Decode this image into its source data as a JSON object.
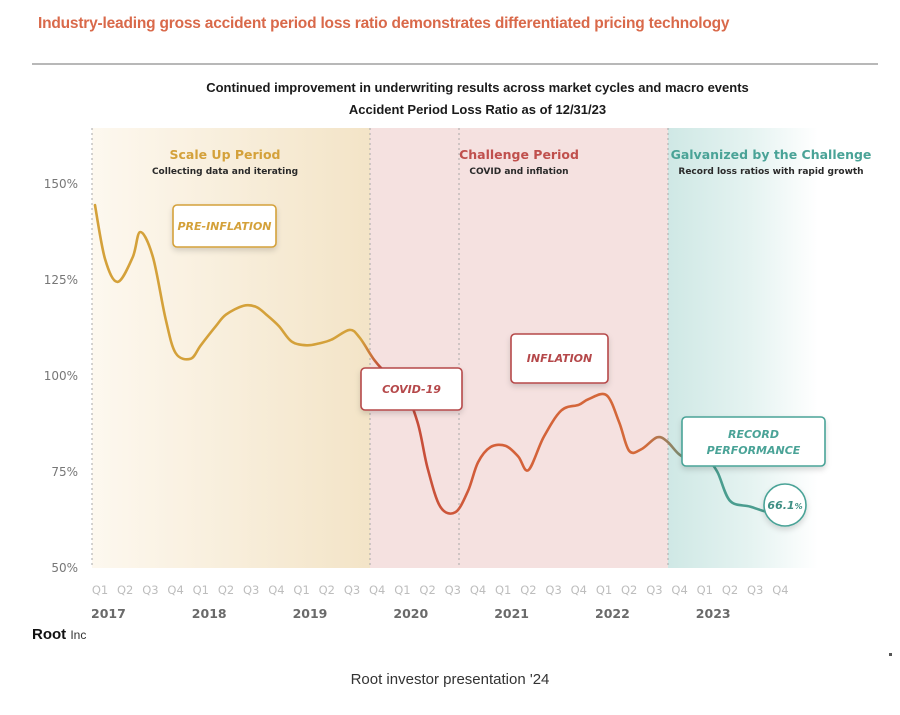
{
  "headline": "Industry-leading gross accident period loss ratio demonstrates differentiated pricing technology",
  "subtitle_line1": "Continued improvement in underwriting results across market cycles and macro events",
  "subtitle_line2": "Accident Period Loss Ratio as of 12/31/23",
  "logo": {
    "name": "Root",
    "suffix": "Inc"
  },
  "caption": "Root investor presentation '24",
  "colors": {
    "headline": "#d9694a",
    "scale_up": "#d4a13a",
    "challenge": "#c0504d",
    "galvanized": "#4aa397",
    "line_orange": "#d9702e"
  },
  "chart_data": {
    "type": "line",
    "title": "Accident Period Loss Ratio as of 12/31/23",
    "xlabel": "",
    "ylabel": "",
    "ylim": [
      50,
      160
    ],
    "y_ticks": [
      "150%",
      "125%",
      "100%",
      "75%",
      "50%"
    ],
    "y_tick_values": [
      150,
      125,
      100,
      75,
      50
    ],
    "grid": false,
    "x_quarters": [
      "Q1",
      "Q2",
      "Q3",
      "Q4",
      "Q1",
      "Q2",
      "Q3",
      "Q4",
      "Q1",
      "Q2",
      "Q3",
      "Q4",
      "Q1",
      "Q2",
      "Q3",
      "Q4",
      "Q1",
      "Q2",
      "Q3",
      "Q4",
      "Q1",
      "Q2",
      "Q3",
      "Q4",
      "Q1",
      "Q2",
      "Q3",
      "Q4"
    ],
    "years": [
      {
        "label": "2017",
        "start_index": 0
      },
      {
        "label": "2018",
        "start_index": 4
      },
      {
        "label": "2019",
        "start_index": 8
      },
      {
        "label": "2020",
        "start_index": 12
      },
      {
        "label": "2021",
        "start_index": 16
      },
      {
        "label": "2022",
        "start_index": 20
      },
      {
        "label": "2023",
        "start_index": 24
      }
    ],
    "series": [
      {
        "name": "Accident Period Loss Ratio",
        "x": [
          -0.2,
          0.2,
          0.7,
          1.3,
          1.6,
          2.1,
          2.6,
          3.0,
          3.6,
          4.0,
          4.6,
          5.0,
          5.7,
          6.2,
          6.6,
          7.1,
          7.6,
          8.2,
          8.7,
          9.2,
          9.9,
          10.3,
          10.9,
          11.4,
          12.0,
          12.6,
          13.0,
          13.5,
          14.1,
          14.6,
          15.0,
          15.5,
          16.1,
          16.6,
          17.0,
          17.6,
          18.3,
          19.0,
          19.4,
          20.1,
          20.6,
          21.0,
          21.5,
          22.1,
          22.5,
          23.0,
          23.6,
          24.1,
          24.5,
          25.0,
          25.8,
          26.6,
          27.1
        ],
        "values": [
          144.5,
          130.5,
          124.5,
          131,
          137.5,
          131,
          115,
          106,
          104.5,
          108,
          113,
          116,
          118.3,
          118,
          116,
          113,
          109,
          108,
          108.5,
          109.5,
          112,
          110,
          104,
          100.5,
          97.5,
          88,
          76,
          66,
          64.5,
          70,
          77.5,
          81.5,
          81.8,
          79,
          75.5,
          84,
          91,
          92.5,
          94,
          95,
          88,
          80.5,
          81,
          84,
          83,
          79.5,
          77.5,
          78,
          75,
          67.5,
          66,
          64.5,
          66.1
        ]
      }
    ],
    "periods": [
      {
        "name": "Scale Up Period",
        "subtitle": "Collecting data and iterating",
        "from": 2017.0,
        "to": "2019 Q4"
      },
      {
        "name": "Challenge Period",
        "subtitle": "COVID and inflation",
        "from": "2019 Q4",
        "to": "2022 Q4"
      },
      {
        "name": "Galvanized by the Challenge",
        "subtitle": "Record loss ratios with rapid growth",
        "from": "2022 Q4",
        "to": "2023 Q4"
      }
    ],
    "annotations": [
      {
        "label": "PRE-INFLATION",
        "period": "Scale Up Period"
      },
      {
        "label": "COVID-19",
        "period": "Challenge Period"
      },
      {
        "label": "INFLATION",
        "period": "Challenge Period"
      },
      {
        "label": "RECORD",
        "label_line2": "PERFORMANCE",
        "period": "Galvanized by the Challenge"
      },
      {
        "label": "66.1",
        "unit": "%",
        "note": "final value"
      }
    ],
    "legend": "none"
  }
}
